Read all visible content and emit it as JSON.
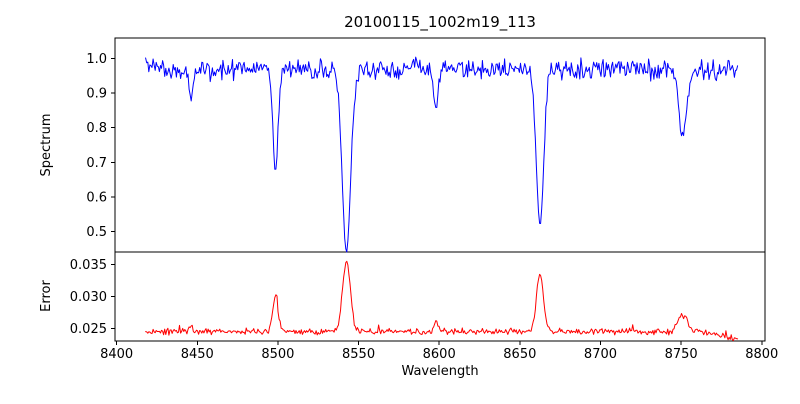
{
  "chart_data": {
    "type": "line",
    "title": "20100115_1002m19_113",
    "xlabel": "Wavelength",
    "xlim": [
      8399,
      8802
    ],
    "xticks": [
      8400,
      8450,
      8500,
      8550,
      8600,
      8650,
      8700,
      8750,
      8800
    ],
    "x_data_range": [
      8418,
      8785
    ],
    "grid": false,
    "legend": "none",
    "subplots": [
      {
        "name": "spectrum",
        "ylabel": "Spectrum",
        "line_color": "#0000ff",
        "ylim": [
          0.44,
          1.06
        ],
        "yticks": [
          0.5,
          0.6,
          0.7,
          0.8,
          0.9,
          1.0
        ],
        "tick_decimals": 1,
        "continuum_level": 0.97,
        "noise_amplitude": 0.035,
        "absorption_lines": [
          {
            "center": 8446.0,
            "min_value": 0.88,
            "sigma": 1.2
          },
          {
            "center": 8498.5,
            "min_value": 0.67,
            "sigma": 1.6
          },
          {
            "center": 8542.5,
            "min_value": 0.44,
            "sigma": 2.6
          },
          {
            "center": 8598.0,
            "min_value": 0.85,
            "sigma": 1.3
          },
          {
            "center": 8662.5,
            "min_value": 0.52,
            "sigma": 2.3
          },
          {
            "center": 8751.0,
            "min_value": 0.78,
            "sigma": 2.5
          }
        ]
      },
      {
        "name": "error",
        "ylabel": "Error",
        "line_color": "#ff0000",
        "ylim": [
          0.023,
          0.037
        ],
        "yticks": [
          0.025,
          0.03,
          0.035
        ],
        "tick_decimals": 3,
        "baseline_level": 0.0245,
        "noise_amplitude": 0.0006,
        "peaks": [
          {
            "center": 8446.0,
            "peak_value": 0.0252,
            "sigma": 1.2
          },
          {
            "center": 8498.5,
            "peak_value": 0.0302,
            "sigma": 1.6
          },
          {
            "center": 8542.5,
            "peak_value": 0.0355,
            "sigma": 2.4
          },
          {
            "center": 8598.0,
            "peak_value": 0.0262,
            "sigma": 1.3
          },
          {
            "center": 8662.5,
            "peak_value": 0.0335,
            "sigma": 2.2
          },
          {
            "center": 8751.0,
            "peak_value": 0.027,
            "sigma": 3.0
          }
        ],
        "right_edge_decline_to": 0.0232
      }
    ],
    "axis_color": "#000000",
    "background_color": "#ffffff"
  }
}
